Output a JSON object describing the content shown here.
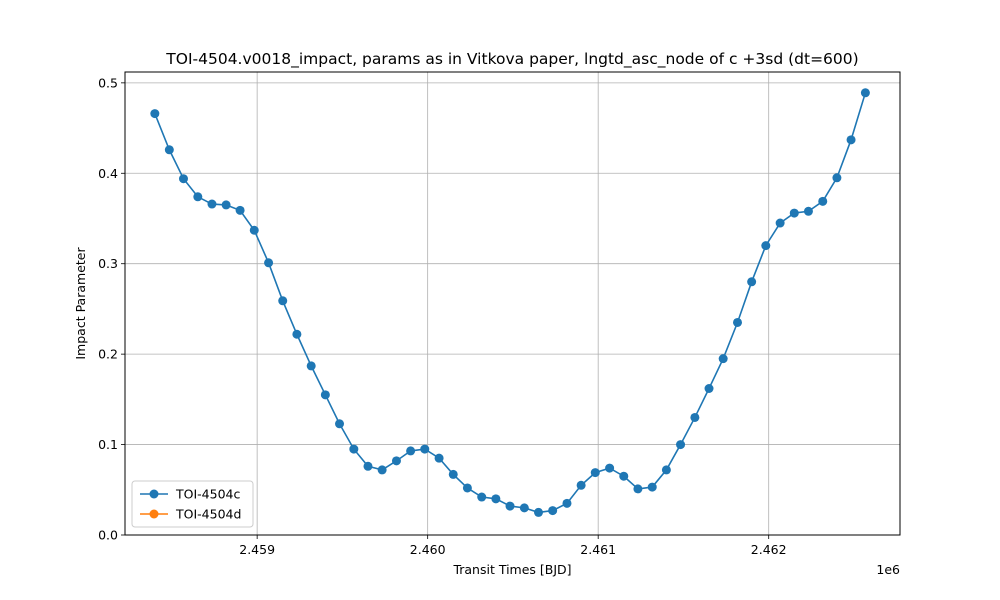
{
  "chart_data": {
    "type": "line",
    "title": "TOI-4504.v0018_impact, params as in Vitkova paper, lngtd_asc_node of c +3sd (dt=600)",
    "xlabel": "Transit Times [BJD]",
    "ylabel": "Impact Parameter",
    "x_offset_label": "1e6",
    "xlim": [
      2458225,
      2462770
    ],
    "ylim": [
      0,
      0.512
    ],
    "x_ticks": [
      2459000,
      2460000,
      2461000,
      2462000
    ],
    "x_tick_labels": [
      "2.459",
      "2.460",
      "2.461",
      "2.462"
    ],
    "y_ticks": [
      0.0,
      0.1,
      0.2,
      0.3,
      0.4,
      0.5
    ],
    "y_tick_labels": [
      "0.0",
      "0.1",
      "0.2",
      "0.3",
      "0.4",
      "0.5"
    ],
    "grid": true,
    "legend_position": "lower-left",
    "series": [
      {
        "name": "TOI-4504c",
        "color": "#1f77b4",
        "marker": "circle",
        "x": [
          2458400,
          2458485,
          2458568,
          2458652,
          2458735,
          2458818,
          2458900,
          2458983,
          2459067,
          2459150,
          2459233,
          2459317,
          2459400,
          2459483,
          2459567,
          2459650,
          2459733,
          2459817,
          2459900,
          2459983,
          2460067,
          2460150,
          2460233,
          2460317,
          2460400,
          2460483,
          2460567,
          2460650,
          2460733,
          2460817,
          2460900,
          2460983,
          2461067,
          2461150,
          2461233,
          2461317,
          2461400,
          2461483,
          2461567,
          2461650,
          2461733,
          2461817,
          2461900,
          2461983,
          2462067,
          2462150,
          2462233,
          2462317,
          2462400,
          2462483,
          2462567
        ],
        "y": [
          0.466,
          0.426,
          0.394,
          0.374,
          0.366,
          0.365,
          0.359,
          0.337,
          0.301,
          0.259,
          0.222,
          0.187,
          0.155,
          0.123,
          0.095,
          0.076,
          0.072,
          0.082,
          0.093,
          0.095,
          0.085,
          0.067,
          0.052,
          0.042,
          0.04,
          0.032,
          0.03,
          0.025,
          0.027,
          0.035,
          0.055,
          0.069,
          0.074,
          0.065,
          0.051,
          0.053,
          0.072,
          0.1,
          0.13,
          0.162,
          0.195,
          0.235,
          0.28,
          0.32,
          0.345,
          0.356,
          0.358,
          0.369,
          0.395,
          0.437,
          0.489
        ]
      },
      {
        "name": "TOI-4504d",
        "color": "#ff7f0e",
        "marker": "circle",
        "x": [],
        "y": []
      }
    ]
  }
}
